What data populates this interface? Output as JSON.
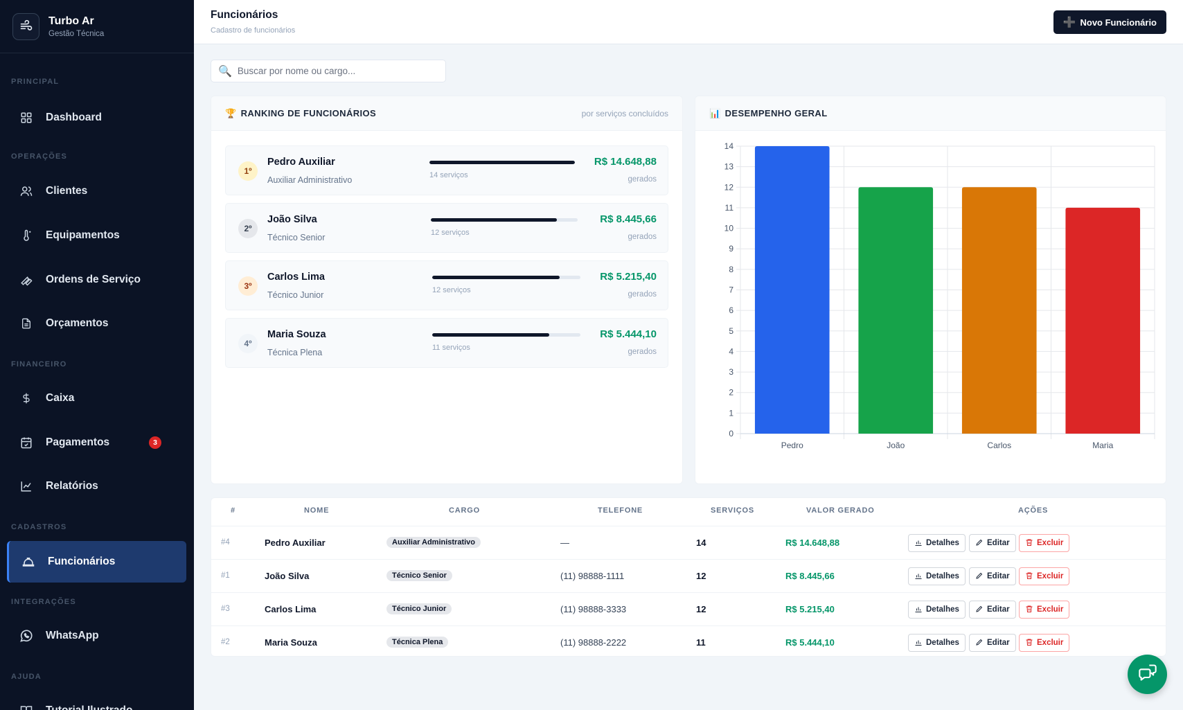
{
  "brand": {
    "name": "Turbo Ar",
    "subtitle": "Gestão Técnica"
  },
  "sidebar": {
    "sections": {
      "principal": "PRINCIPAL",
      "operacoes": "OPERAÇÕES",
      "financeiro": "FINANCEIRO",
      "cadastros": "CADASTROS",
      "integracoes": "INTEGRAÇÕES",
      "ajuda": "AJUDA"
    },
    "items": {
      "dashboard": "Dashboard",
      "clientes": "Clientes",
      "equipamentos": "Equipamentos",
      "ordens": "Ordens de Serviço",
      "orcamentos": "Orçamentos",
      "caixa": "Caixa",
      "pagamentos": "Pagamentos",
      "pagamentos_badge": "3",
      "relatorios": "Relatórios",
      "funcionarios": "Funcionários",
      "whatsapp": "WhatsApp",
      "tutorial": "Tutorial Ilustrado"
    }
  },
  "header": {
    "title": "Funcionários",
    "subtitle": "Cadastro de funcionários",
    "new_button": "Novo Funcionário"
  },
  "search": {
    "placeholder": "Buscar por nome ou cargo..."
  },
  "ranking": {
    "title": "RANKING DE FUNCIONÁRIOS",
    "note": "por serviços concluídos",
    "generated_label": "gerados",
    "items": [
      {
        "pos": "1º",
        "name": "Pedro Auxiliar",
        "role": "Auxiliar Administrativo",
        "services": "14 serviços",
        "value": "R$ 14.648,88",
        "fill": 1.0
      },
      {
        "pos": "2º",
        "name": "João Silva",
        "role": "Técnico Senior",
        "services": "12 serviços",
        "value": "R$ 8.445,66",
        "fill": 0.86
      },
      {
        "pos": "3º",
        "name": "Carlos Lima",
        "role": "Técnico Junior",
        "services": "12 serviços",
        "value": "R$ 5.215,40",
        "fill": 0.86
      },
      {
        "pos": "4º",
        "name": "Maria Souza",
        "role": "Técnica Plena",
        "services": "11 serviços",
        "value": "R$ 5.444,10",
        "fill": 0.79
      }
    ]
  },
  "performance": {
    "title": "DESEMPENHO GERAL"
  },
  "chart_data": {
    "type": "bar",
    "categories": [
      "Pedro",
      "João",
      "Carlos",
      "Maria"
    ],
    "values": [
      14,
      12,
      12,
      11
    ],
    "colors": [
      "#2563eb",
      "#16a34a",
      "#d97706",
      "#dc2626"
    ],
    "ylim": [
      0,
      14
    ],
    "yticks": [
      "0",
      "1",
      "2",
      "3",
      "4",
      "5",
      "6",
      "7",
      "8",
      "9",
      "10",
      "11",
      "12",
      "13",
      "14"
    ],
    "grid": true
  },
  "table": {
    "headers": {
      "id": "#",
      "nome": "NOME",
      "cargo": "CARGO",
      "telefone": "TELEFONE",
      "servicos": "SERVIÇOS",
      "valor": "VALOR GERADO",
      "acoes": "AÇÕES"
    },
    "actions": {
      "details": "Detalhes",
      "edit": "Editar",
      "delete": "Excluir"
    },
    "rows": [
      {
        "id": "#4",
        "name": "Pedro Auxiliar",
        "role": "Auxiliar Administrativo",
        "phone": "—",
        "services": "14",
        "value": "R$ 14.648,88"
      },
      {
        "id": "#1",
        "name": "João Silva",
        "role": "Técnico Senior",
        "phone": "(11) 98888-1111",
        "services": "12",
        "value": "R$ 8.445,66"
      },
      {
        "id": "#3",
        "name": "Carlos Lima",
        "role": "Técnico Junior",
        "phone": "(11) 98888-3333",
        "services": "12",
        "value": "R$ 5.215,40"
      },
      {
        "id": "#2",
        "name": "Maria Souza",
        "role": "Técnica Plena",
        "phone": "(11) 98888-2222",
        "services": "11",
        "value": "R$ 5.444,10"
      }
    ]
  }
}
